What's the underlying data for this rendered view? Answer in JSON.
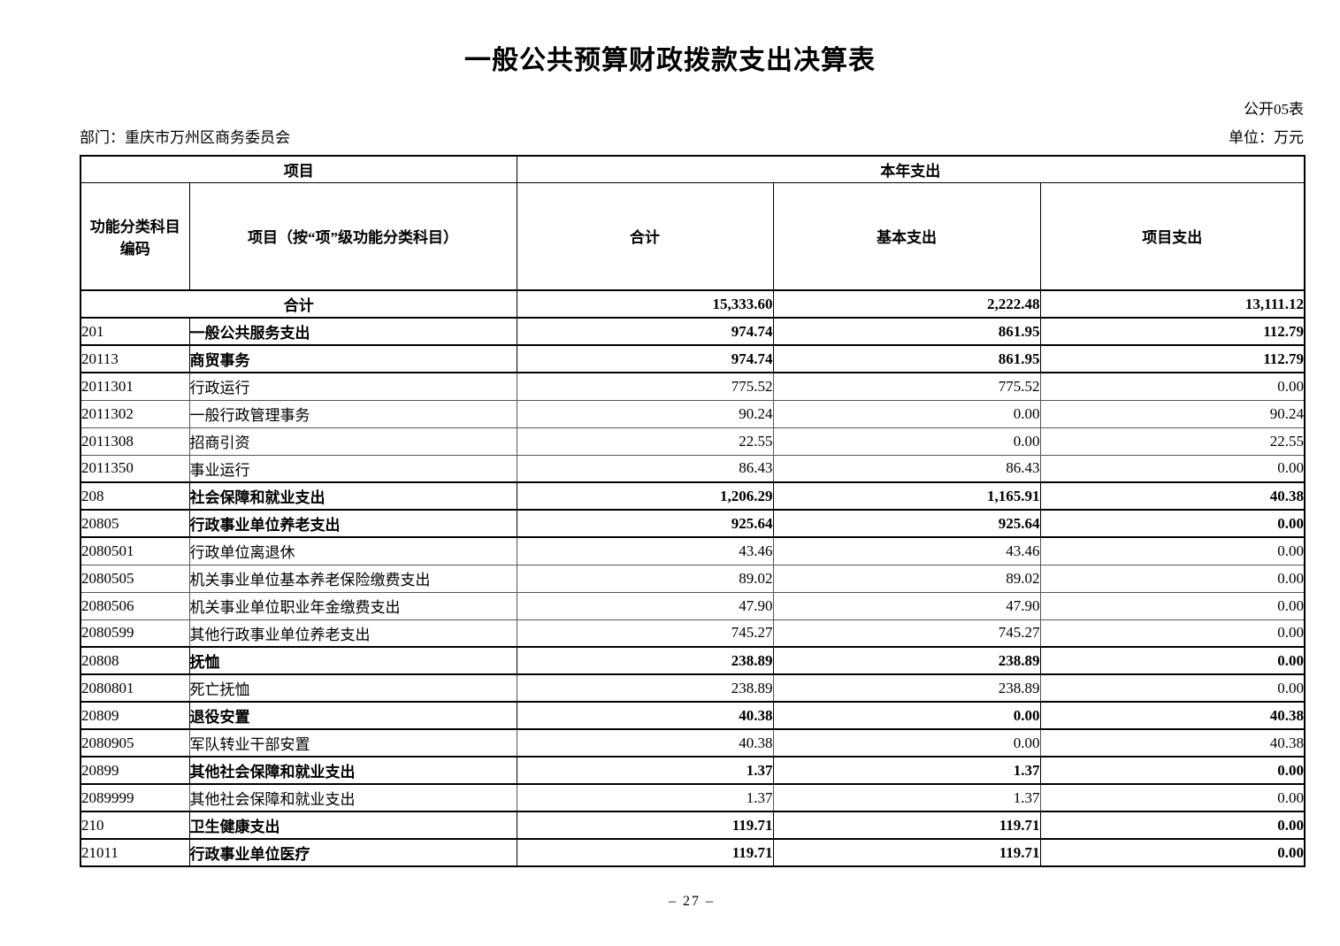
{
  "page": {
    "title": "一般公共预算财政拨款支出决算表",
    "table_no": "公开05表",
    "department_label": "部门：重庆市万州区商务委员会",
    "unit_label": "单位：万元",
    "page_number": "– 27 –"
  },
  "table": {
    "header": {
      "item_group": "项目",
      "year_expense_group": "本年支出",
      "code_col": "功能分类科目\n编码",
      "item_col": "项目（按“项”级功能分类科目）",
      "total_col": "合计",
      "basic_col": "基本支出",
      "project_col": "项目支出"
    },
    "rows": [
      {
        "code": "",
        "name": "合计",
        "total": "15,333.60",
        "basic": "2,222.48",
        "project": "13,111.12"
      },
      {
        "code": "201",
        "name": "一般公共服务支出",
        "total": "974.74",
        "basic": "861.95",
        "project": "112.79"
      },
      {
        "code": "20113",
        "name": "商贸事务",
        "total": "974.74",
        "basic": "861.95",
        "project": "112.79"
      },
      {
        "code": "2011301",
        "name": "行政运行",
        "total": "775.52",
        "basic": "775.52",
        "project": "0.00"
      },
      {
        "code": "2011302",
        "name": "一般行政管理事务",
        "total": "90.24",
        "basic": "0.00",
        "project": "90.24"
      },
      {
        "code": "2011308",
        "name": "招商引资",
        "total": "22.55",
        "basic": "0.00",
        "project": "22.55"
      },
      {
        "code": "2011350",
        "name": "事业运行",
        "total": "86.43",
        "basic": "86.43",
        "project": "0.00"
      },
      {
        "code": "208",
        "name": "社会保障和就业支出",
        "total": "1,206.29",
        "basic": "1,165.91",
        "project": "40.38"
      },
      {
        "code": "20805",
        "name": "行政事业单位养老支出",
        "total": "925.64",
        "basic": "925.64",
        "project": "0.00"
      },
      {
        "code": "2080501",
        "name": "行政单位离退休",
        "total": "43.46",
        "basic": "43.46",
        "project": "0.00"
      },
      {
        "code": "2080505",
        "name": "机关事业单位基本养老保险缴费支出",
        "total": "89.02",
        "basic": "89.02",
        "project": "0.00"
      },
      {
        "code": "2080506",
        "name": "机关事业单位职业年金缴费支出",
        "total": "47.90",
        "basic": "47.90",
        "project": "0.00"
      },
      {
        "code": "2080599",
        "name": "其他行政事业单位养老支出",
        "total": "745.27",
        "basic": "745.27",
        "project": "0.00"
      },
      {
        "code": "20808",
        "name": "抚恤",
        "total": "238.89",
        "basic": "238.89",
        "project": "0.00"
      },
      {
        "code": "2080801",
        "name": "死亡抚恤",
        "total": "238.89",
        "basic": "238.89",
        "project": "0.00"
      },
      {
        "code": "20809",
        "name": "退役安置",
        "total": "40.38",
        "basic": "0.00",
        "project": "40.38"
      },
      {
        "code": "2080905",
        "name": "军队转业干部安置",
        "total": "40.38",
        "basic": "0.00",
        "project": "40.38"
      },
      {
        "code": "20899",
        "name": "其他社会保障和就业支出",
        "total": "1.37",
        "basic": "1.37",
        "project": "0.00"
      },
      {
        "code": "2089999",
        "name": "其他社会保障和就业支出",
        "total": "1.37",
        "basic": "1.37",
        "project": "0.00"
      },
      {
        "code": "210",
        "name": "卫生健康支出",
        "total": "119.71",
        "basic": "119.71",
        "project": "0.00"
      },
      {
        "code": "21011",
        "name": "行政事业单位医疗",
        "total": "119.71",
        "basic": "119.71",
        "project": "0.00"
      }
    ]
  }
}
